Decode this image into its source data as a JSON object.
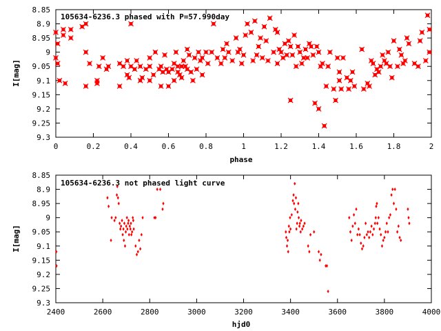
{
  "colors": {
    "series": "#ff0000",
    "axis": "#000000",
    "background": "#ffffff"
  },
  "chart_data": [
    {
      "type": "scatter",
      "title": "105634-6236.3 phased with P=57.990day",
      "xlabel": "phase",
      "ylabel": "I[mag]",
      "xlim": [
        0,
        2
      ],
      "ylim": [
        8.85,
        9.3
      ],
      "y_inverted": true,
      "grid": false,
      "xticks": [
        "0",
        "0.2",
        "0.4",
        "0.6",
        "0.8",
        "1",
        "1.2",
        "1.4",
        "1.6",
        "1.8",
        "2"
      ],
      "yticks": [
        "8.85",
        "8.9",
        "8.95",
        "9",
        "9.05",
        "9.1",
        "9.15",
        "9.2",
        "9.25",
        "9.3"
      ],
      "marker": "filled-square-star",
      "points": [
        [
          0.0,
          9.02
        ],
        [
          0.0,
          8.93
        ],
        [
          0.01,
          9.04
        ],
        [
          0.01,
          8.97
        ],
        [
          0.02,
          9.1
        ],
        [
          0.04,
          8.92
        ],
        [
          0.04,
          8.94
        ],
        [
          0.05,
          9.11
        ],
        [
          0.08,
          8.95
        ],
        [
          0.08,
          8.92
        ],
        [
          0.14,
          8.91
        ],
        [
          0.16,
          8.9
        ],
        [
          0.16,
          9.0
        ],
        [
          0.16,
          9.12
        ],
        [
          0.18,
          9.04
        ],
        [
          0.22,
          9.11
        ],
        [
          0.22,
          9.1
        ],
        [
          0.23,
          9.05
        ],
        [
          0.25,
          9.02
        ],
        [
          0.27,
          9.06
        ],
        [
          0.28,
          9.05
        ],
        [
          0.34,
          9.04
        ],
        [
          0.34,
          9.12
        ],
        [
          0.36,
          9.05
        ],
        [
          0.38,
          9.08
        ],
        [
          0.38,
          9.03
        ],
        [
          0.39,
          9.09
        ],
        [
          0.4,
          8.9
        ],
        [
          0.4,
          9.05
        ],
        [
          0.42,
          9.06
        ],
        [
          0.43,
          9.03
        ],
        [
          0.45,
          9.1
        ],
        [
          0.45,
          9.05
        ],
        [
          0.46,
          9.09
        ],
        [
          0.48,
          9.06
        ],
        [
          0.5,
          9.1
        ],
        [
          0.5,
          9.05
        ],
        [
          0.5,
          9.02
        ],
        [
          0.52,
          9.08
        ],
        [
          0.53,
          9.0
        ],
        [
          0.55,
          9.06
        ],
        [
          0.56,
          9.05
        ],
        [
          0.56,
          9.12
        ],
        [
          0.57,
          9.07
        ],
        [
          0.58,
          9.01
        ],
        [
          0.59,
          9.06
        ],
        [
          0.6,
          9.07
        ],
        [
          0.6,
          9.12
        ],
        [
          0.62,
          9.06
        ],
        [
          0.63,
          9.1
        ],
        [
          0.63,
          9.04
        ],
        [
          0.64,
          9.0
        ],
        [
          0.65,
          9.07
        ],
        [
          0.65,
          9.05
        ],
        [
          0.66,
          9.08
        ],
        [
          0.67,
          9.05
        ],
        [
          0.67,
          9.09
        ],
        [
          0.68,
          9.03
        ],
        [
          0.69,
          9.05
        ],
        [
          0.7,
          8.99
        ],
        [
          0.7,
          9.06
        ],
        [
          0.71,
          9.01
        ],
        [
          0.72,
          9.07
        ],
        [
          0.73,
          9.1
        ],
        [
          0.74,
          9.02
        ],
        [
          0.75,
          9.06
        ],
        [
          0.76,
          9.0
        ],
        [
          0.77,
          9.03
        ],
        [
          0.78,
          9.02
        ],
        [
          0.78,
          9.08
        ],
        [
          0.8,
          9.0
        ],
        [
          0.81,
          9.04
        ],
        [
          0.83,
          9.0
        ],
        [
          0.84,
          8.9
        ],
        [
          0.86,
          9.02
        ],
        [
          0.88,
          9.04
        ],
        [
          0.89,
          8.99
        ],
        [
          0.9,
          9.02
        ],
        [
          0.91,
          8.97
        ],
        [
          0.92,
          9.0
        ],
        [
          0.94,
          9.03
        ],
        [
          0.96,
          8.95
        ],
        [
          0.97,
          9.0
        ],
        [
          0.98,
          8.99
        ],
        [
          0.99,
          9.04
        ],
        [
          1.0,
          9.01
        ],
        [
          1.01,
          8.94
        ],
        [
          1.02,
          8.9
        ],
        [
          1.04,
          8.93
        ],
        [
          1.05,
          9.03
        ],
        [
          1.06,
          8.89
        ],
        [
          1.07,
          9.01
        ],
        [
          1.08,
          8.98
        ],
        [
          1.09,
          8.95
        ],
        [
          1.1,
          9.02
        ],
        [
          1.11,
          8.91
        ],
        [
          1.12,
          8.96
        ],
        [
          1.13,
          9.03
        ],
        [
          1.14,
          8.88
        ],
        [
          1.16,
          9.0
        ],
        [
          1.17,
          8.92
        ],
        [
          1.18,
          9.04
        ],
        [
          1.18,
          8.93
        ],
        [
          1.19,
          8.99
        ],
        [
          1.2,
          9.0
        ],
        [
          1.21,
          9.02
        ],
        [
          1.22,
          8.97
        ],
        [
          1.23,
          9.01
        ],
        [
          1.24,
          8.96
        ],
        [
          1.25,
          8.98
        ],
        [
          1.25,
          9.17
        ],
        [
          1.26,
          9.01
        ],
        [
          1.27,
          8.94
        ],
        [
          1.28,
          9.05
        ],
        [
          1.29,
          8.98
        ],
        [
          1.3,
          9.0
        ],
        [
          1.31,
          9.04
        ],
        [
          1.32,
          9.02
        ],
        [
          1.33,
          8.99
        ],
        [
          1.34,
          9.02
        ],
        [
          1.35,
          8.97
        ],
        [
          1.36,
          8.98
        ],
        [
          1.37,
          9.01
        ],
        [
          1.38,
          9.18
        ],
        [
          1.39,
          8.98
        ],
        [
          1.4,
          9.0
        ],
        [
          1.4,
          9.2
        ],
        [
          1.41,
          9.05
        ],
        [
          1.42,
          9.04
        ],
        [
          1.43,
          9.26
        ],
        [
          1.44,
          9.12
        ],
        [
          1.45,
          9.05
        ],
        [
          1.46,
          9.0
        ],
        [
          1.48,
          9.13
        ],
        [
          1.49,
          9.17
        ],
        [
          1.5,
          9.02
        ],
        [
          1.51,
          9.07
        ],
        [
          1.51,
          9.1
        ],
        [
          1.52,
          9.13
        ],
        [
          1.53,
          9.02
        ],
        [
          1.55,
          9.09
        ],
        [
          1.56,
          9.13
        ],
        [
          1.57,
          9.1
        ],
        [
          1.58,
          9.07
        ],
        [
          1.59,
          9.12
        ],
        [
          1.63,
          8.99
        ],
        [
          1.64,
          9.13
        ],
        [
          1.66,
          9.11
        ],
        [
          1.67,
          9.12
        ],
        [
          1.68,
          9.03
        ],
        [
          1.69,
          9.04
        ],
        [
          1.7,
          9.08
        ],
        [
          1.71,
          9.06
        ],
        [
          1.72,
          9.07
        ],
        [
          1.73,
          9.05
        ],
        [
          1.74,
          9.01
        ],
        [
          1.75,
          9.03
        ],
        [
          1.76,
          9.04
        ],
        [
          1.77,
          9.0
        ],
        [
          1.78,
          9.05
        ],
        [
          1.79,
          9.09
        ],
        [
          1.8,
          8.96
        ],
        [
          1.82,
          9.05
        ],
        [
          1.83,
          8.99
        ],
        [
          1.84,
          9.01
        ],
        [
          1.85,
          9.04
        ],
        [
          1.86,
          9.03
        ],
        [
          1.87,
          8.95
        ],
        [
          1.88,
          8.97
        ],
        [
          1.91,
          9.04
        ],
        [
          1.93,
          9.05
        ],
        [
          1.94,
          8.96
        ],
        [
          1.95,
          8.93
        ],
        [
          1.97,
          9.03
        ],
        [
          1.98,
          8.87
        ],
        [
          1.99,
          9.0
        ],
        [
          1.99,
          8.92
        ]
      ]
    },
    {
      "type": "scatter",
      "title": "105634-6236.3 not phased light curve",
      "xlabel": "hjd0",
      "ylabel": "I[mag]",
      "xlim": [
        2400,
        4000
      ],
      "ylim": [
        8.85,
        9.3
      ],
      "y_inverted": true,
      "grid": false,
      "xticks": [
        "2400",
        "2600",
        "2800",
        "3000",
        "3200",
        "3400",
        "3600",
        "3800",
        "4000"
      ],
      "yticks": [
        "8.85",
        "8.9",
        "8.95",
        "9",
        "9.05",
        "9.1",
        "9.15",
        "9.2",
        "9.25",
        "9.3"
      ],
      "marker": "small-diamond",
      "points": [
        [
          2402,
          9.12
        ],
        [
          2403,
          9.17
        ],
        [
          2620,
          8.93
        ],
        [
          2625,
          8.96
        ],
        [
          2635,
          9.08
        ],
        [
          2638,
          9.0
        ],
        [
          2650,
          9.01
        ],
        [
          2655,
          9.0
        ],
        [
          2660,
          8.92
        ],
        [
          2662,
          8.89
        ],
        [
          2665,
          8.93
        ],
        [
          2668,
          8.95
        ],
        [
          2672,
          9.02
        ],
        [
          2675,
          9.04
        ],
        [
          2678,
          9.03
        ],
        [
          2682,
          9.01
        ],
        [
          2685,
          9.06
        ],
        [
          2688,
          9.04
        ],
        [
          2690,
          9.08
        ],
        [
          2692,
          9.02
        ],
        [
          2695,
          9.1
        ],
        [
          2698,
          9.05
        ],
        [
          2700,
          9.03
        ],
        [
          2703,
          9.0
        ],
        [
          2705,
          9.04
        ],
        [
          2708,
          9.02
        ],
        [
          2710,
          9.01
        ],
        [
          2712,
          9.06
        ],
        [
          2715,
          9.03
        ],
        [
          2718,
          9.04
        ],
        [
          2720,
          9.02
        ],
        [
          2722,
          9.06
        ],
        [
          2725,
          9.05
        ],
        [
          2728,
          9.0
        ],
        [
          2730,
          9.01
        ],
        [
          2732,
          9.04
        ],
        [
          2740,
          9.1
        ],
        [
          2745,
          9.13
        ],
        [
          2750,
          9.12
        ],
        [
          2755,
          9.08
        ],
        [
          2760,
          9.11
        ],
        [
          2765,
          9.06
        ],
        [
          2770,
          9.0
        ],
        [
          2820,
          9.0
        ],
        [
          2825,
          9.0
        ],
        [
          2832,
          8.9
        ],
        [
          2845,
          8.9
        ],
        [
          2855,
          8.97
        ],
        [
          2858,
          8.95
        ],
        [
          3380,
          9.05
        ],
        [
          3382,
          9.07
        ],
        [
          3385,
          9.1
        ],
        [
          3388,
          9.08
        ],
        [
          3390,
          9.12
        ],
        [
          3393,
          9.03
        ],
        [
          3395,
          9.05
        ],
        [
          3398,
          9.0
        ],
        [
          3400,
          9.04
        ],
        [
          3405,
          8.99
        ],
        [
          3410,
          8.94
        ],
        [
          3413,
          8.92
        ],
        [
          3415,
          8.95
        ],
        [
          3418,
          8.88
        ],
        [
          3420,
          8.97
        ],
        [
          3423,
          8.93
        ],
        [
          3425,
          9.04
        ],
        [
          3428,
          9.02
        ],
        [
          3430,
          8.98
        ],
        [
          3433,
          8.95
        ],
        [
          3435,
          9.0
        ],
        [
          3438,
          9.03
        ],
        [
          3440,
          9.02
        ],
        [
          3443,
          9.05
        ],
        [
          3445,
          9.01
        ],
        [
          3450,
          9.04
        ],
        [
          3455,
          9.03
        ],
        [
          3460,
          9.02
        ],
        [
          3475,
          9.1
        ],
        [
          3480,
          9.12
        ],
        [
          3485,
          9.06
        ],
        [
          3500,
          9.05
        ],
        [
          3520,
          9.12
        ],
        [
          3525,
          9.15
        ],
        [
          3530,
          9.13
        ],
        [
          3550,
          9.17
        ],
        [
          3555,
          9.17
        ],
        [
          3560,
          9.26
        ],
        [
          3650,
          9.0
        ],
        [
          3655,
          9.05
        ],
        [
          3660,
          9.08
        ],
        [
          3665,
          9.03
        ],
        [
          3670,
          8.99
        ],
        [
          3675,
          9.02
        ],
        [
          3680,
          8.97
        ],
        [
          3685,
          9.06
        ],
        [
          3690,
          9.04
        ],
        [
          3695,
          9.06
        ],
        [
          3700,
          9.09
        ],
        [
          3705,
          9.11
        ],
        [
          3710,
          9.1
        ],
        [
          3715,
          9.07
        ],
        [
          3720,
          9.02
        ],
        [
          3725,
          9.06
        ],
        [
          3730,
          9.05
        ],
        [
          3735,
          9.07
        ],
        [
          3740,
          9.05
        ],
        [
          3745,
          9.03
        ],
        [
          3750,
          9.06
        ],
        [
          3755,
          9.04
        ],
        [
          3760,
          9.02
        ],
        [
          3763,
          9.0
        ],
        [
          3765,
          8.96
        ],
        [
          3768,
          8.95
        ],
        [
          3770,
          9.02
        ],
        [
          3775,
          9.0
        ],
        [
          3780,
          9.04
        ],
        [
          3785,
          9.06
        ],
        [
          3790,
          9.1
        ],
        [
          3795,
          9.08
        ],
        [
          3800,
          9.07
        ],
        [
          3805,
          9.05
        ],
        [
          3810,
          9.02
        ],
        [
          3815,
          9.05
        ],
        [
          3820,
          9.0
        ],
        [
          3825,
          8.99
        ],
        [
          3830,
          8.92
        ],
        [
          3835,
          8.9
        ],
        [
          3840,
          8.95
        ],
        [
          3845,
          8.9
        ],
        [
          3850,
          8.97
        ],
        [
          3855,
          9.05
        ],
        [
          3860,
          9.03
        ],
        [
          3865,
          9.07
        ],
        [
          3870,
          9.08
        ],
        [
          3900,
          8.97
        ],
        [
          3903,
          9.0
        ],
        [
          3906,
          9.02
        ]
      ]
    }
  ]
}
